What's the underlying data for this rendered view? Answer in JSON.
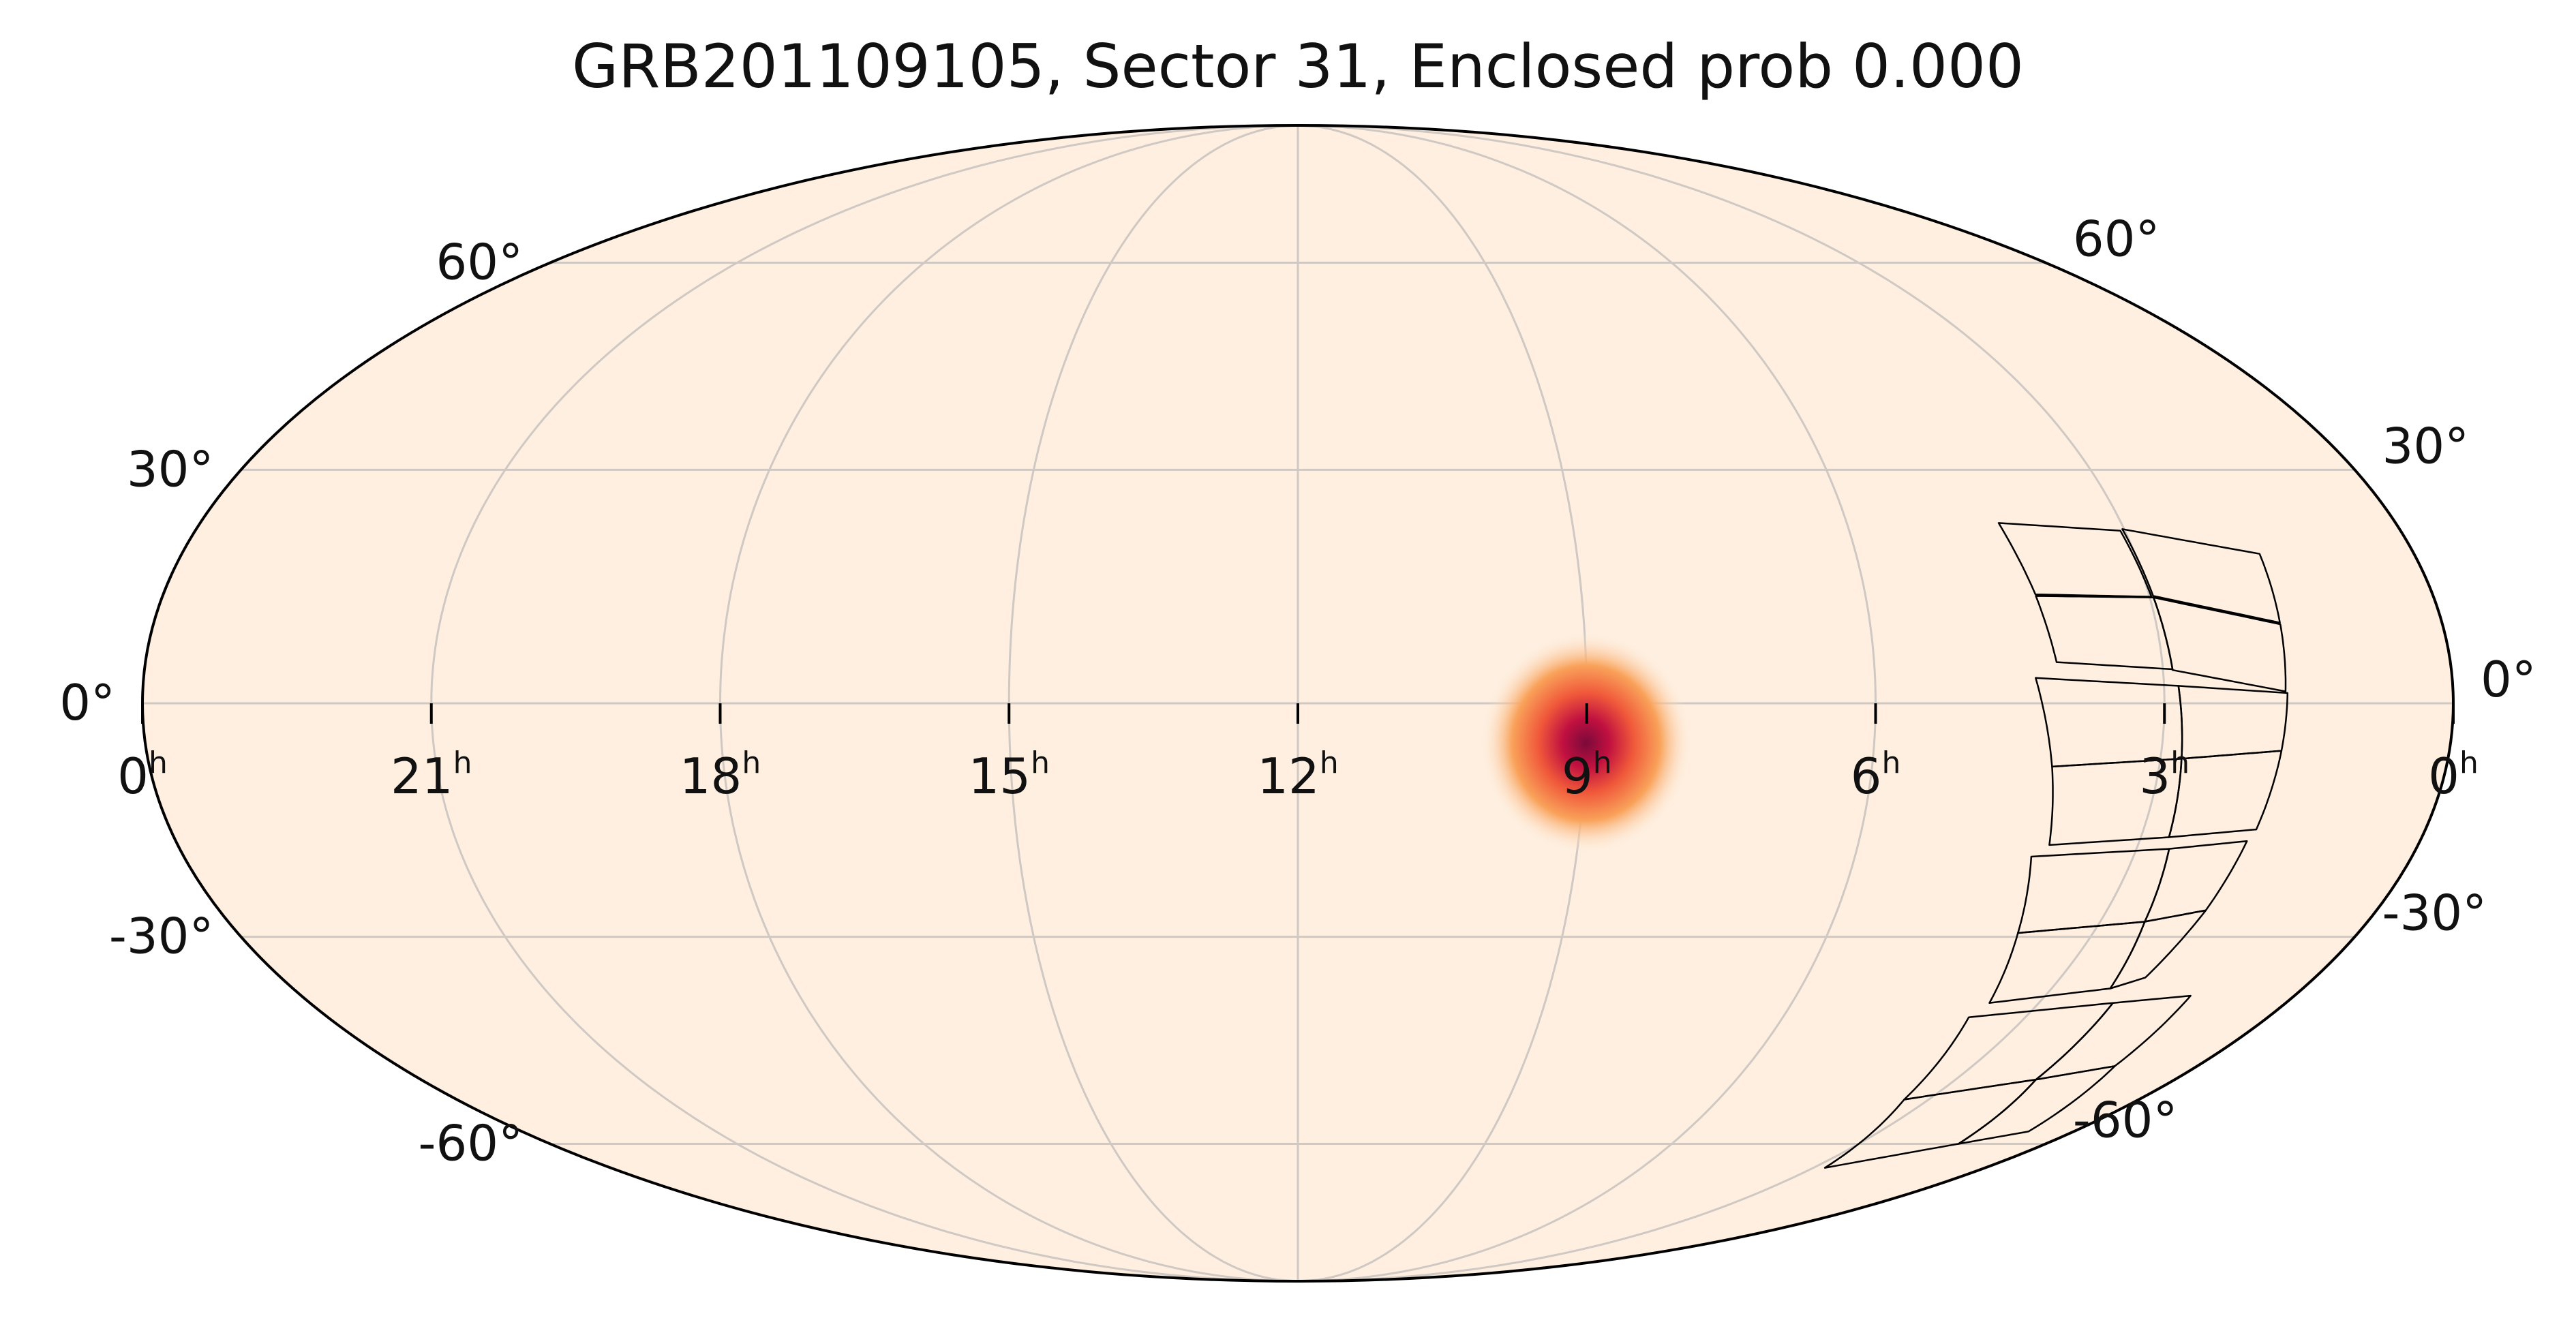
{
  "chart_data": {
    "type": "heatmap",
    "projection": "mollweide",
    "title": "GRB201109105, Sector 31, Enclosed prob 0.000",
    "ra_unit": "h",
    "ra_direction": "increasing-right-to-left",
    "ra_ticks": [
      {
        "ra": 0,
        "label": "0"
      },
      {
        "ra": 21,
        "label": "21"
      },
      {
        "ra": 18,
        "label": "18"
      },
      {
        "ra": 15,
        "label": "15"
      },
      {
        "ra": 12,
        "label": "12"
      },
      {
        "ra": 9,
        "label": "9"
      },
      {
        "ra": 6,
        "label": "6"
      },
      {
        "ra": 3,
        "label": "3"
      },
      {
        "ra": 0,
        "label": "0",
        "side": "right"
      }
    ],
    "dec_ticks": [
      {
        "dec": 60,
        "label": "60°"
      },
      {
        "dec": 30,
        "label": "30°"
      },
      {
        "dec": 0,
        "label": "0°"
      },
      {
        "dec": -30,
        "label": "-30°"
      },
      {
        "dec": -60,
        "label": "-60°"
      }
    ],
    "grid": true,
    "colors": {
      "background": "#feefe0",
      "grid": "#cfc8c3",
      "frame": "#000000",
      "hotspot_core": "#c01040",
      "hotspot_mid": "#f0583a",
      "hotspot_edge": "#f9a25a"
    },
    "probability_hotspot": {
      "ra_h": 9.0,
      "dec_deg": -5.0,
      "sigma_ra_h": 0.55,
      "sigma_dec_deg": 7.0
    },
    "tess_footprint": {
      "sector": 31,
      "cameras": [
        {
          "camera": 1,
          "ccds": [
            {
              "corners": [
                [
                  4.34,
                  23.0
                ],
                [
                  3.05,
                  22.0
                ],
                [
                  2.98,
                  13.5
                ],
                [
                  4.2,
                  13.8
                ]
              ]
            },
            {
              "corners": [
                [
                  3.02,
                  22.2
                ],
                [
                  1.66,
                  19.0
                ],
                [
                  1.7,
                  10.2
                ],
                [
                  2.96,
                  13.6
                ]
              ]
            },
            {
              "corners": [
                [
                  4.2,
                  13.6
                ],
                [
                  2.96,
                  13.4
                ],
                [
                  2.9,
                  4.3
                ],
                [
                  4.1,
                  5.2
                ]
              ]
            },
            {
              "corners": [
                [
                  2.96,
                  13.4
                ],
                [
                  1.7,
                  10.0
                ],
                [
                  1.74,
                  1.5
                ],
                [
                  2.9,
                  4.2
                ]
              ]
            }
          ]
        },
        {
          "camera": 2,
          "ccds": [
            {
              "corners": [
                [
                  4.33,
                  3.2
                ],
                [
                  2.85,
                  2.2
                ],
                [
                  2.78,
                  -7.0
                ],
                [
                  4.12,
                  -8.0
                ]
              ]
            },
            {
              "corners": [
                [
                  2.85,
                  2.2
                ],
                [
                  1.72,
                  1.3
                ],
                [
                  1.75,
                  -6.0
                ],
                [
                  2.78,
                  -7.0
                ]
              ]
            },
            {
              "corners": [
                [
                  4.12,
                  -8.0
                ],
                [
                  2.78,
                  -7.0
                ],
                [
                  2.7,
                  -17.0
                ],
                [
                  3.95,
                  -18.0
                ]
              ]
            },
            {
              "corners": [
                [
                  2.78,
                  -7.0
                ],
                [
                  1.75,
                  -6.0
                ],
                [
                  1.8,
                  -16.0
                ],
                [
                  2.7,
                  -17.0
                ]
              ]
            }
          ]
        },
        {
          "camera": 3,
          "ccds": [
            {
              "corners": [
                [
                  4.1,
                  -19.5
                ],
                [
                  2.65,
                  -18.5
                ],
                [
                  2.5,
                  -28.0
                ],
                [
                  3.85,
                  -29.5
                ]
              ]
            },
            {
              "corners": [
                [
                  2.65,
                  -18.5
                ],
                [
                  1.85,
                  -17.5
                ],
                [
                  1.9,
                  -26.5
                ],
                [
                  2.5,
                  -28.0
                ]
              ]
            },
            {
              "corners": [
                [
                  3.85,
                  -29.5
                ],
                [
                  2.5,
                  -28.0
                ],
                [
                  2.3,
                  -37.0
                ],
                [
                  3.6,
                  -39.0
                ]
              ]
            },
            {
              "corners": [
                [
                  2.5,
                  -28.0
                ],
                [
                  1.9,
                  -26.5
                ],
                [
                  2.0,
                  -35.5
                ],
                [
                  2.3,
                  -37.0
                ]
              ]
            }
          ]
        },
        {
          "camera": 4,
          "ccds": [
            {
              "corners": [
                [
                  3.7,
                  -41.0
                ],
                [
                  2.1,
                  -39.0
                ],
                [
                  1.9,
                  -50.0
                ],
                [
                  3.35,
                  -53.0
                ]
              ]
            },
            {
              "corners": [
                [
                  2.1,
                  -39.0
                ],
                [
                  1.25,
                  -38.0
                ],
                [
                  1.1,
                  -48.0
                ],
                [
                  1.9,
                  -50.0
                ]
              ]
            },
            {
              "corners": [
                [
                  3.35,
                  -53.0
                ],
                [
                  1.9,
                  -50.0
                ],
                [
                  1.4,
                  -60.0
                ],
                [
                  2.8,
                  -64.0
                ]
              ]
            },
            {
              "corners": [
                [
                  1.9,
                  -50.0
                ],
                [
                  1.1,
                  -48.0
                ],
                [
                  0.7,
                  -58.0
                ],
                [
                  1.4,
                  -60.0
                ]
              ]
            }
          ]
        }
      ]
    }
  }
}
